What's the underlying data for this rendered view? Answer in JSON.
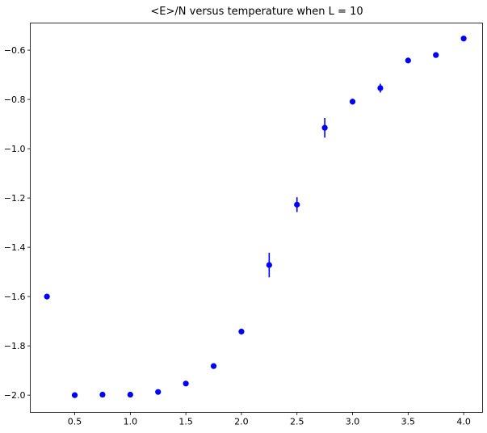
{
  "chart_data": {
    "type": "scatter",
    "title": "<E>/N versus temperature when L = 10",
    "xlabel": "",
    "ylabel": "",
    "xlim": [
      0.1,
      4.17
    ],
    "ylim": [
      -2.07,
      -0.49
    ],
    "x_ticks": [
      0.5,
      1.0,
      1.5,
      2.0,
      2.5,
      3.0,
      3.5,
      4.0
    ],
    "x_tick_labels": [
      "0.5",
      "1.0",
      "1.5",
      "2.0",
      "2.5",
      "3.0",
      "3.5",
      "4.0"
    ],
    "y_ticks": [
      -2.0,
      -1.8,
      -1.6,
      -1.4,
      -1.2,
      -1.0,
      -0.8,
      -0.6
    ],
    "y_tick_labels": [
      "−2.0",
      "−1.8",
      "−1.6",
      "−1.4",
      "−1.2",
      "−1.0",
      "−0.8",
      "−0.6"
    ],
    "grid": false,
    "series": [
      {
        "color": "#0000ff",
        "x": [
          0.25,
          0.5,
          0.75,
          1.0,
          1.25,
          1.5,
          1.75,
          2.0,
          2.25,
          2.5,
          2.75,
          3.0,
          3.25,
          3.5,
          3.75,
          4.0
        ],
        "y": [
          -1.6,
          -2.0,
          -1.998,
          -1.998,
          -1.987,
          -1.953,
          -1.882,
          -1.742,
          -1.472,
          -1.227,
          -0.915,
          -0.809,
          -0.754,
          -0.642,
          -0.62,
          -0.553
        ],
        "yerr": [
          0.003,
          0.002,
          0.002,
          0.002,
          0.004,
          0.006,
          0.007,
          0.012,
          0.05,
          0.03,
          0.04,
          0.012,
          0.018,
          0.006,
          0.006,
          0.005
        ]
      }
    ]
  }
}
